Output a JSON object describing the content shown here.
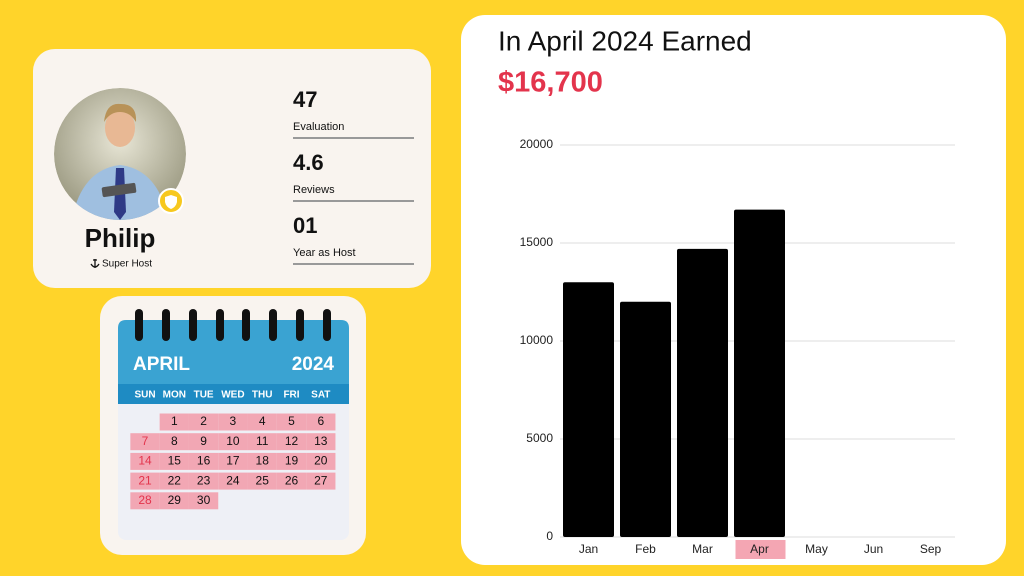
{
  "profile": {
    "name": "Philip",
    "role": "Super Host",
    "stats": [
      {
        "value": "47",
        "label": "Evaluation"
      },
      {
        "value": "4.6",
        "label": "Reviews"
      },
      {
        "value": "01",
        "label": "Year as Host"
      }
    ]
  },
  "calendar": {
    "month": "APRIL",
    "year": "2024",
    "weekdays": [
      "SUN",
      "MON",
      "TUE",
      "WED",
      "THU",
      "FRI",
      "SAT"
    ],
    "weeks": [
      [
        null,
        1,
        2,
        3,
        4,
        5,
        6
      ],
      [
        7,
        8,
        9,
        10,
        11,
        12,
        13
      ],
      [
        14,
        15,
        16,
        17,
        18,
        19,
        20
      ],
      [
        21,
        22,
        23,
        24,
        25,
        26,
        27
      ],
      [
        28,
        29,
        30
      ]
    ]
  },
  "chart_data": {
    "type": "bar",
    "title": "In April 2024 Earned",
    "subtitle": "$16,700",
    "categories": [
      "Jan",
      "Feb",
      "Mar",
      "Apr",
      "May",
      "Jun",
      "Sep"
    ],
    "values": [
      13000,
      12000,
      14700,
      16700,
      null,
      null,
      null
    ],
    "color": "#000000",
    "highlight_category": "Apr",
    "highlight_color": "#f4a6b3",
    "ylim": [
      0,
      20000
    ],
    "yticks": [
      0,
      5000,
      10000,
      15000,
      20000
    ],
    "grid": true
  }
}
